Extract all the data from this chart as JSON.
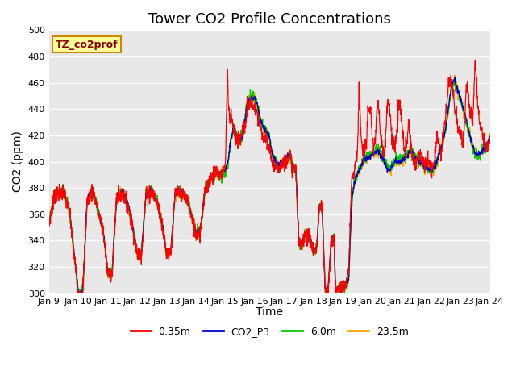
{
  "title": "Tower CO2 Profile Concentrations",
  "xlabel": "Time",
  "ylabel": "CO2 (ppm)",
  "ylim": [
    300,
    500
  ],
  "yticks": [
    300,
    320,
    340,
    360,
    380,
    400,
    420,
    440,
    460,
    480,
    500
  ],
  "xtick_labels": [
    "Jan 9",
    "Jan 10",
    "Jan 11",
    "Jan 12",
    "Jan 13",
    "Jan 14",
    "Jan 15",
    "Jan 16",
    "Jan 17",
    "Jan 18",
    "Jan 19",
    "Jan 20",
    "Jan 21",
    "Jan 22",
    "Jan 23",
    "Jan 24"
  ],
  "colors": {
    "0.35m": "#FF0000",
    "CO2_P3": "#0000CC",
    "6.0m": "#00CC00",
    "23.5m": "#FFA500"
  },
  "annotation_text": "TZ_co2prof",
  "annotation_facecolor": "#FFFF99",
  "annotation_edgecolor": "#CC8800",
  "annotation_textcolor": "#880000",
  "background_color": "#E8E8E8",
  "title_fontsize": 13,
  "axis_fontsize": 10,
  "tick_fontsize": 8
}
